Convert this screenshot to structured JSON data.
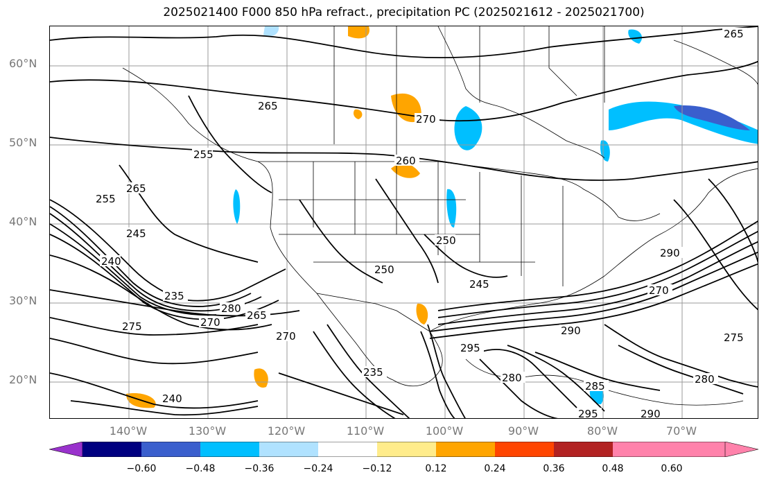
{
  "title": "2025021400 F000 850 hPa refract., precipitation PC (2025021612 - 2025021700)",
  "latitude_labels": [
    "60°N",
    "50°N",
    "40°N",
    "30°N",
    "20°N"
  ],
  "longitude_labels": [
    "140°W",
    "130°W",
    "120°W",
    "110°W",
    "100°W",
    "90°W",
    "80°W",
    "70°W"
  ],
  "contour_labels": [
    "265",
    "270",
    "260",
    "255",
    "265",
    "255",
    "245",
    "265",
    "250",
    "250",
    "245",
    "240",
    "235",
    "280",
    "275",
    "270",
    "265",
    "270",
    "240",
    "235",
    "280",
    "290",
    "270",
    "275",
    "295",
    "290",
    "285",
    "280",
    "290",
    "295"
  ],
  "colorbar": {
    "ticks": [
      "−0.60",
      "−0.48",
      "−0.36",
      "−0.24",
      "−0.12",
      "0.12",
      "0.24",
      "0.36",
      "0.48",
      "0.60"
    ],
    "colors": [
      "#9932cc",
      "#000080",
      "#3a5fcd",
      "#00bfff",
      "#b0e2ff",
      "#ffffff",
      "#ffec8b",
      "#ffa500",
      "#ff4500",
      "#b22222",
      "#ff82ab"
    ]
  }
}
